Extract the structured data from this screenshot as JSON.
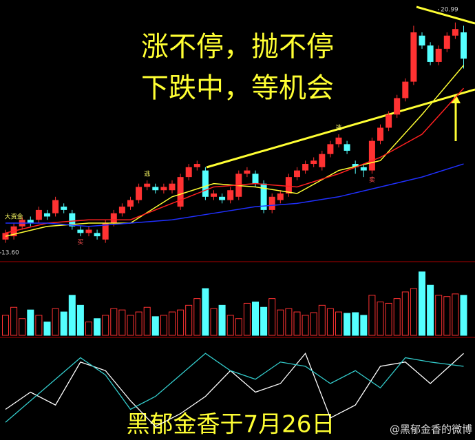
{
  "chart_data": {
    "type": "candlestick",
    "title_lines": [
      "涨不停，抛不停",
      "下跌中，等机会"
    ],
    "caption": "黑郁金香于7月26日",
    "watermark": "@黑郁金香的微博",
    "ylim": [
      13.6,
      20.99
    ],
    "yticks": [
      {
        "value": 13.6,
        "label": "13.60"
      },
      20.99
    ],
    "up_color": "#ff3232",
    "down_color": "#54ffff",
    "open": [
      14.0,
      14.1,
      14.4,
      14.6,
      14.6,
      14.8,
      14.8,
      15.0,
      14.8,
      14.3,
      14.2,
      14.2,
      14.0,
      14.5,
      14.8,
      15.0,
      15.2,
      15.6,
      15.6,
      15.5,
      15.5,
      15.0,
      15.9,
      16.2,
      16.1,
      15.3,
      15.3,
      15.2,
      15.3,
      16.0,
      16.0,
      15.7,
      14.9,
      15.2,
      15.4,
      15.9,
      16.1,
      16.3,
      16.2,
      16.6,
      16.9,
      16.9,
      16.3,
      16.2,
      16.1,
      17.0,
      17.4,
      17.8,
      18.3,
      18.8,
      20.2,
      19.9,
      19.4,
      19.8,
      20.2,
      20.3
    ],
    "close": [
      14.2,
      14.4,
      14.6,
      14.5,
      14.9,
      14.7,
      15.2,
      14.9,
      14.4,
      14.2,
      14.3,
      14.1,
      14.5,
      14.8,
      15.0,
      15.2,
      15.6,
      15.7,
      15.5,
      15.6,
      15.7,
      15.9,
      16.2,
      16.3,
      15.3,
      15.4,
      15.2,
      15.5,
      16.0,
      16.1,
      15.7,
      14.9,
      15.3,
      15.4,
      15.9,
      16.1,
      16.3,
      16.4,
      16.6,
      16.9,
      17.1,
      16.7,
      16.2,
      16.1,
      17.0,
      17.4,
      17.8,
      18.3,
      18.8,
      20.3,
      19.9,
      19.4,
      19.8,
      20.2,
      20.4,
      19.5
    ],
    "high": [
      14.3,
      14.5,
      14.7,
      14.7,
      15.0,
      14.9,
      15.3,
      15.1,
      14.9,
      14.4,
      14.4,
      14.3,
      14.6,
      14.9,
      15.1,
      15.3,
      15.7,
      15.8,
      15.7,
      15.7,
      15.8,
      16.0,
      16.3,
      16.4,
      16.2,
      15.5,
      15.4,
      15.6,
      16.1,
      16.2,
      16.1,
      15.8,
      15.4,
      15.5,
      16.0,
      16.2,
      16.4,
      16.5,
      16.7,
      17.0,
      17.2,
      17.0,
      16.4,
      16.3,
      17.1,
      17.5,
      17.9,
      18.4,
      18.9,
      20.5,
      20.3,
      20.0,
      19.9,
      20.3,
      20.6,
      20.5
    ],
    "low": [
      13.9,
      14.0,
      14.3,
      14.4,
      14.5,
      14.6,
      14.7,
      14.8,
      14.3,
      14.1,
      14.1,
      14.0,
      13.9,
      14.4,
      14.7,
      14.9,
      15.1,
      15.5,
      15.4,
      15.4,
      15.4,
      14.9,
      15.8,
      16.1,
      15.2,
      15.2,
      15.1,
      15.1,
      15.2,
      15.9,
      15.6,
      14.8,
      14.8,
      15.1,
      15.3,
      15.8,
      16.0,
      16.2,
      16.1,
      16.5,
      16.8,
      16.6,
      16.0,
      15.9,
      16.0,
      16.9,
      17.3,
      17.7,
      18.2,
      18.7,
      19.8,
      19.3,
      19.3,
      19.7,
      20.1,
      19.2
    ],
    "ma_x": [
      0,
      5,
      10,
      15,
      20,
      25,
      30,
      35,
      40,
      45,
      50,
      55
    ],
    "moving_averages": [
      {
        "color": "#ffff33",
        "values": [
          14.1,
          14.4,
          14.5,
          14.5,
          15.3,
          15.7,
          15.6,
          15.4,
          16.1,
          16.4,
          17.8,
          19.3
        ]
      },
      {
        "color": "#ff2020",
        "values": [
          14.2,
          14.5,
          14.6,
          14.6,
          15.1,
          15.6,
          15.7,
          15.6,
          16.0,
          16.5,
          17.2,
          18.6
        ]
      },
      {
        "color": "#2030ff",
        "values": [
          14.5,
          14.5,
          14.4,
          14.5,
          14.6,
          14.8,
          15.0,
          15.1,
          15.3,
          15.6,
          15.9,
          16.3
        ]
      }
    ],
    "annotations": [
      {
        "index": 1,
        "text": "大资金",
        "position": "high"
      },
      {
        "index": 17,
        "text": "逃",
        "position": "high"
      },
      {
        "index": 40,
        "text": "逃",
        "position": "high"
      },
      {
        "index": 9,
        "text": "买",
        "position": "low"
      },
      {
        "index": 44,
        "text": "卖",
        "position": "low"
      }
    ],
    "volume": {
      "ylim": [
        0,
        100
      ],
      "values": [
        30,
        42,
        25,
        38,
        30,
        20,
        40,
        35,
        60,
        45,
        20,
        25,
        30,
        40,
        38,
        30,
        35,
        42,
        28,
        30,
        35,
        38,
        45,
        55,
        70,
        40,
        45,
        30,
        25,
        48,
        50,
        42,
        55,
        38,
        40,
        35,
        30,
        34,
        45,
        40,
        35,
        33,
        34,
        30,
        60,
        50,
        48,
        55,
        65,
        70,
        95,
        75,
        60,
        58,
        62,
        60
      ]
    },
    "indicator": {
      "ylim": [
        0,
        100
      ],
      "x": [
        0,
        3,
        6,
        9,
        12,
        15,
        18,
        21,
        24,
        27,
        30,
        33,
        36,
        39,
        42,
        45,
        48,
        51,
        55
      ],
      "series": [
        {
          "color": "#ffffff",
          "values": [
            30,
            50,
            35,
            85,
            75,
            40,
            10,
            25,
            45,
            75,
            50,
            60,
            95,
            20,
            35,
            80,
            85,
            60,
            95
          ]
        },
        {
          "color": "#33cccc",
          "values": [
            15,
            40,
            65,
            90,
            70,
            30,
            45,
            70,
            95,
            75,
            65,
            85,
            80,
            60,
            75,
            55,
            90,
            85,
            80
          ]
        }
      ]
    }
  }
}
